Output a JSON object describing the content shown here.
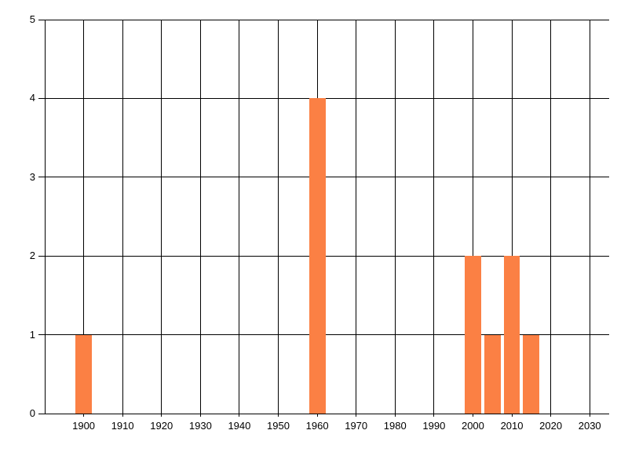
{
  "chart_data": {
    "type": "bar",
    "title": "",
    "xlabel": "",
    "ylabel": "",
    "points": [
      {
        "x": 1900,
        "y": 1
      },
      {
        "x": 1960,
        "y": 4
      },
      {
        "x": 2000,
        "y": 2
      },
      {
        "x": 2005,
        "y": 1
      },
      {
        "x": 2010,
        "y": 2
      },
      {
        "x": 2015,
        "y": 1
      }
    ],
    "xlim": [
      1890,
      2035
    ],
    "ylim": [
      0,
      5
    ],
    "x_ticks": [
      1900,
      1910,
      1920,
      1930,
      1940,
      1950,
      1960,
      1970,
      1980,
      1990,
      2000,
      2010,
      2020,
      2030
    ],
    "y_ticks": [
      0,
      1,
      2,
      3,
      4,
      5
    ],
    "grid": true,
    "legend_position": "none",
    "bar_width_years": 4.2,
    "bar_color": "#fb8044",
    "grid_color": "#000000",
    "axis_color": "#000000",
    "label_color": "#000000"
  }
}
